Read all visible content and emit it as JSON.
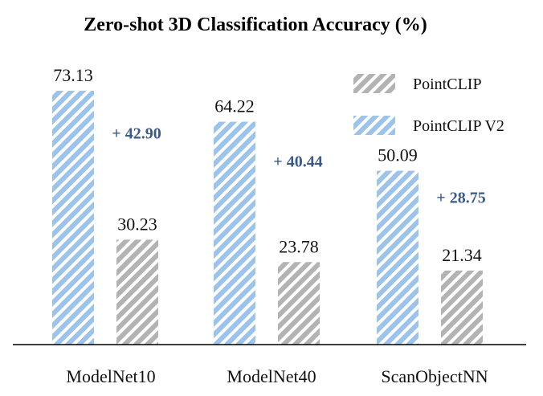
{
  "chart_data": {
    "type": "bar",
    "title": "Zero-shot 3D Classification Accuracy (%)",
    "categories": [
      "ModelNet10",
      "ModelNet40",
      "ScanObjectNN"
    ],
    "series": [
      {
        "name": "PointCLIP V2",
        "values": [
          73.13,
          64.22,
          50.09
        ],
        "color": "#9cc3ea"
      },
      {
        "name": "PointCLIP",
        "values": [
          30.23,
          23.78,
          21.34
        ],
        "color": "#b3b3b3"
      }
    ],
    "value_labels": {
      "PointCLIP V2": [
        "73.13",
        "64.22",
        "50.09"
      ],
      "PointCLIP": [
        "30.23",
        "23.78",
        "21.34"
      ]
    },
    "deltas": [
      "+ 42.90",
      "+ 40.44",
      "+ 28.75"
    ],
    "delta_color": "#3a5a8c",
    "legend": {
      "placement": "top-right",
      "entries": [
        {
          "label": "PointCLIP",
          "color": "#b3b3b3"
        },
        {
          "label": "PointCLIP V2",
          "color": "#9cc3ea"
        }
      ]
    },
    "xlabel": "",
    "ylabel": "",
    "ylim": [
      0,
      78
    ],
    "grid": false,
    "y_axis_visible": false,
    "bar_pattern": "diagonal-stripes"
  }
}
